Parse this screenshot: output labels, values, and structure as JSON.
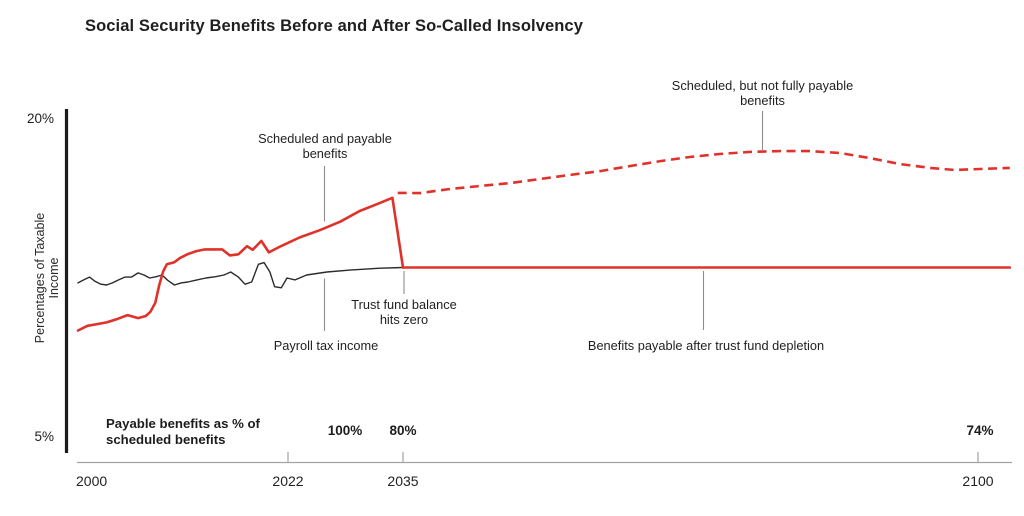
{
  "title": "Social Security Benefits Before and After So-Called Insolvency",
  "y_axis": {
    "label": "Percentages of Taxable Income",
    "top_tick": "20%",
    "bottom_tick": "5%"
  },
  "annotations": {
    "scheduled_payable": "Scheduled and payable\nbenefits",
    "scheduled_unpayable": "Scheduled, but not fully payable\nbenefits",
    "trust_fund_zero": "Trust fund balance\nhits zero",
    "payroll": "Payroll tax income",
    "payable_after": "Benefits payable after trust fund depletion"
  },
  "footer": {
    "label": "Payable benefits as % of\nscheduled benefits",
    "pct_at_2022": "100%",
    "pct_at_2035": "80%",
    "pct_at_2100": "74%"
  },
  "colors": {
    "red": "#e0322b",
    "black_line": "#2b2b2b",
    "annotation_line": "#8c8c8c",
    "axis_gray": "#a3a3a3",
    "axis_black": "#1c1c1c",
    "text": "#1f1f1f"
  },
  "chart_data": {
    "type": "line",
    "title": "Social Security Benefits Before and After So-Called Insolvency",
    "xlabel": "",
    "ylabel": "Percentages of Taxable Income",
    "ylim": [
      5,
      20
    ],
    "xlim": [
      2000,
      2104
    ],
    "x_ticks": [
      2000,
      2022,
      2035,
      2100
    ],
    "y_tick_labels": [
      "20%",
      "5%"
    ],
    "grid": false,
    "legend_position": "none (labels drawn as in-chart annotations)",
    "series": [
      {
        "name": "Payroll tax income",
        "color": "black",
        "style": "solid",
        "points": [
          [
            2000,
            12.13
          ],
          [
            2000.6,
            12.27
          ],
          [
            2001.2,
            12.4
          ],
          [
            2001.8,
            12.2
          ],
          [
            2002.4,
            12.07
          ],
          [
            2003,
            12.03
          ],
          [
            2003.6,
            12.13
          ],
          [
            2004.2,
            12.26
          ],
          [
            2004.9,
            12.4
          ],
          [
            2005.6,
            12.4
          ],
          [
            2006.3,
            12.6
          ],
          [
            2006.9,
            12.5
          ],
          [
            2007.5,
            12.36
          ],
          [
            2008.2,
            12.42
          ],
          [
            2008.8,
            12.5
          ],
          [
            2009.4,
            12.25
          ],
          [
            2010.1,
            12.03
          ],
          [
            2010.8,
            12.13
          ],
          [
            2011.5,
            12.17
          ],
          [
            2012.4,
            12.26
          ],
          [
            2013.4,
            12.36
          ],
          [
            2014.4,
            12.42
          ],
          [
            2015.3,
            12.5
          ],
          [
            2016,
            12.64
          ],
          [
            2016.8,
            12.4
          ],
          [
            2017.5,
            12.07
          ],
          [
            2018.2,
            12.17
          ],
          [
            2018.9,
            13.0
          ],
          [
            2019.5,
            13.08
          ],
          [
            2020.1,
            12.64
          ],
          [
            2020.6,
            11.95
          ],
          [
            2021.3,
            11.9
          ],
          [
            2021.9,
            12.36
          ],
          [
            2022.8,
            12.27
          ],
          [
            2024.1,
            12.5
          ],
          [
            2026.4,
            12.64
          ],
          [
            2029,
            12.73
          ],
          [
            2032.4,
            12.82
          ],
          [
            2035,
            12.85
          ]
        ]
      },
      {
        "name": "Scheduled and payable benefits",
        "color": "red",
        "style": "solid",
        "points": [
          [
            2000,
            9.9
          ],
          [
            2001,
            10.12
          ],
          [
            2002,
            10.2
          ],
          [
            2003,
            10.28
          ],
          [
            2004.2,
            10.45
          ],
          [
            2005.2,
            10.62
          ],
          [
            2006.3,
            10.48
          ],
          [
            2007.1,
            10.58
          ],
          [
            2007.6,
            10.78
          ],
          [
            2008.1,
            11.2
          ],
          [
            2008.5,
            12.0
          ],
          [
            2008.9,
            12.65
          ],
          [
            2009.3,
            13.0
          ],
          [
            2010.1,
            13.1
          ],
          [
            2010.7,
            13.3
          ],
          [
            2011.5,
            13.48
          ],
          [
            2012.4,
            13.62
          ],
          [
            2013.3,
            13.7
          ],
          [
            2015.1,
            13.7
          ],
          [
            2015.9,
            13.42
          ],
          [
            2016.8,
            13.47
          ],
          [
            2017.7,
            13.85
          ],
          [
            2018.3,
            13.68
          ],
          [
            2019.2,
            14.1
          ],
          [
            2020,
            13.56
          ],
          [
            2021.2,
            13.84
          ],
          [
            2023.3,
            14.26
          ],
          [
            2025.6,
            14.6
          ],
          [
            2027.9,
            15.0
          ],
          [
            2030.1,
            15.5
          ],
          [
            2032.4,
            15.88
          ],
          [
            2033.8,
            16.12
          ],
          [
            2035,
            12.85
          ]
        ]
      },
      {
        "name": "Scheduled, but not fully payable benefits",
        "color": "red",
        "style": "dashed",
        "points": [
          [
            2034.4,
            16.35
          ],
          [
            2036.9,
            16.34
          ],
          [
            2040.3,
            16.53
          ],
          [
            2043.7,
            16.67
          ],
          [
            2047.1,
            16.81
          ],
          [
            2050.5,
            17.0
          ],
          [
            2053.9,
            17.19
          ],
          [
            2057.3,
            17.37
          ],
          [
            2060.7,
            17.61
          ],
          [
            2064.1,
            17.84
          ],
          [
            2067.4,
            18.03
          ],
          [
            2070.8,
            18.17
          ],
          [
            2074.2,
            18.27
          ],
          [
            2077.6,
            18.31
          ],
          [
            2081,
            18.31
          ],
          [
            2084.4,
            18.22
          ],
          [
            2087.8,
            17.98
          ],
          [
            2091.2,
            17.7
          ],
          [
            2094.6,
            17.52
          ],
          [
            2097.4,
            17.42
          ],
          [
            2100.2,
            17.47
          ],
          [
            2103.6,
            17.52
          ]
        ]
      },
      {
        "name": "Benefits payable after trust fund depletion",
        "color": "red",
        "style": "solid",
        "points": [
          [
            2035,
            12.85
          ],
          [
            2103.6,
            12.85
          ]
        ]
      }
    ],
    "callouts": {
      "payable_pct_of_scheduled": {
        "2022": "100%",
        "2035": "80%",
        "2100": "74%"
      },
      "trust_fund_zero_year": 2035
    }
  }
}
